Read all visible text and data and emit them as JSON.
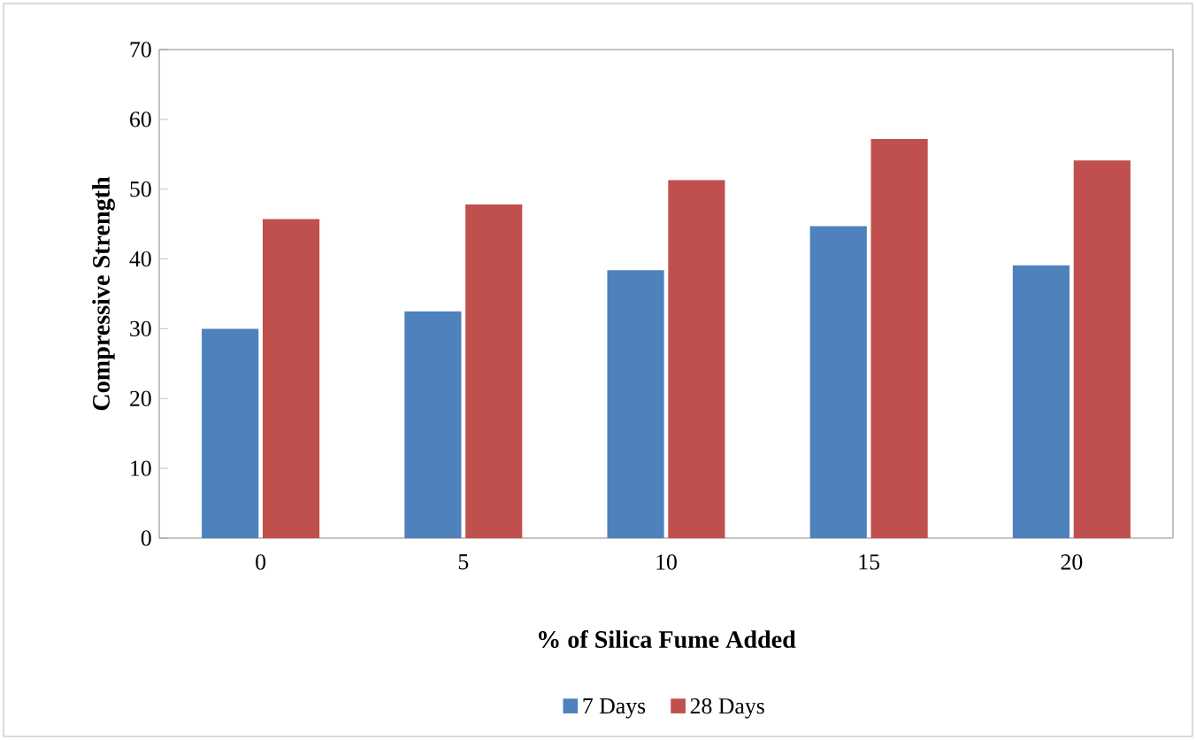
{
  "chart_data": {
    "type": "bar",
    "xlabel": "% of Silica Fume Added",
    "ylabel": "Compressive Strength",
    "categories": [
      "0",
      "5",
      "10",
      "15",
      "20"
    ],
    "series": [
      {
        "name": "7 Days",
        "color": "#4f81bd",
        "values": [
          30.0,
          32.5,
          38.4,
          44.7,
          39.1
        ]
      },
      {
        "name": "28 Days",
        "color": "#c0504d",
        "values": [
          45.7,
          47.8,
          51.3,
          57.2,
          54.1
        ]
      }
    ],
    "ylim": [
      0,
      70
    ],
    "yticks": [
      0,
      10,
      20,
      30,
      40,
      50,
      60,
      70
    ],
    "grid": false,
    "legend": "bottom"
  }
}
